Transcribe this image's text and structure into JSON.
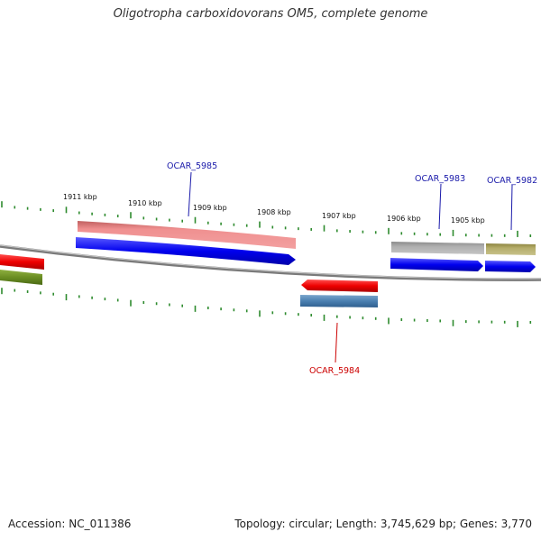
{
  "title": "Oligotropha carboxidovorans OM5, complete genome",
  "footer": {
    "accession": "Accession: NC_011386",
    "stats": "Topology: circular; Length: 3,745,629 bp; Genes: 3,770"
  },
  "scale": {
    "tick_color": "#2e8b2e",
    "labels": [
      "1911 kbp",
      "1910 kbp",
      "1909 kbp",
      "1908 kbp",
      "1907 kbp",
      "1906 kbp",
      "1905 kbp"
    ]
  },
  "genes": [
    {
      "id": "OCAR_5985",
      "strand": "forward",
      "label_color": "#1a1aaa"
    },
    {
      "id": "OCAR_5983",
      "strand": "forward",
      "label_color": "#1a1aaa"
    },
    {
      "id": "OCAR_5982",
      "strand": "forward",
      "label_color": "#1a1aaa"
    },
    {
      "id": "OCAR_5984",
      "strand": "reverse",
      "label_color": "#cc0000"
    }
  ],
  "colors": {
    "backbone": "#7a7a7a",
    "cds_forward": "#0000ee",
    "cds_reverse": "#ee0000",
    "gene_pink": "#ef8a8a",
    "gene_gray": "#a9a9a9",
    "gene_olive": "#b5ad6a",
    "gene_steel": "#4a7fb0",
    "gene_darkgreen": "#6b8e23"
  }
}
